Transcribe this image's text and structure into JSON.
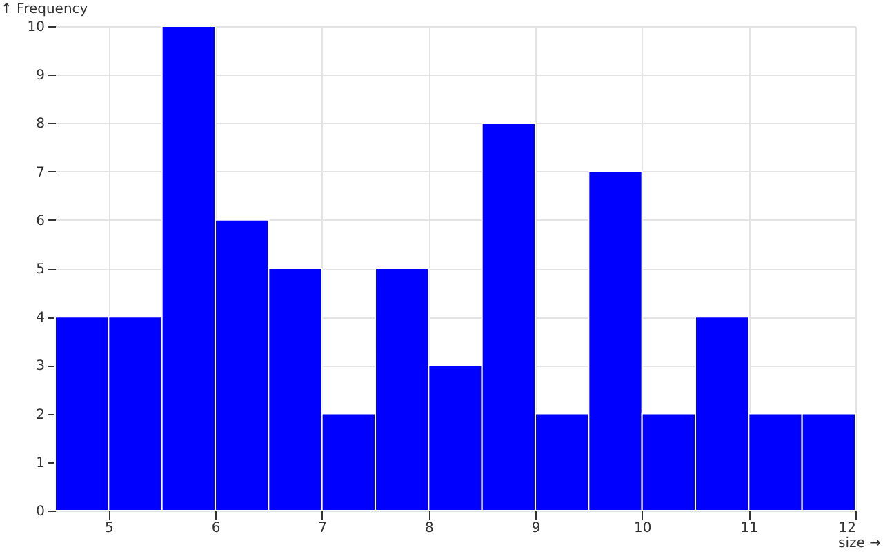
{
  "chart_data": {
    "type": "histogram",
    "xlabel": "size →",
    "ylabel": "↑ Frequency",
    "bins": [
      4.5,
      5,
      5.5,
      6,
      6.5,
      7,
      7.5,
      8,
      8.5,
      9,
      9.5,
      10,
      10.5,
      11,
      11.5,
      12
    ],
    "values": [
      4,
      4,
      10,
      6,
      5,
      2,
      5,
      3,
      8,
      2,
      7,
      2,
      4,
      2,
      2
    ],
    "color": "#0000ff",
    "xlim": [
      4.5,
      12
    ],
    "xticks": [
      5,
      6,
      7,
      8,
      9,
      10,
      11,
      12
    ],
    "ylim": [
      0,
      10
    ],
    "yticks": [
      0,
      1,
      2,
      3,
      4,
      5,
      6,
      7,
      8,
      9,
      10
    ],
    "grid": true
  }
}
